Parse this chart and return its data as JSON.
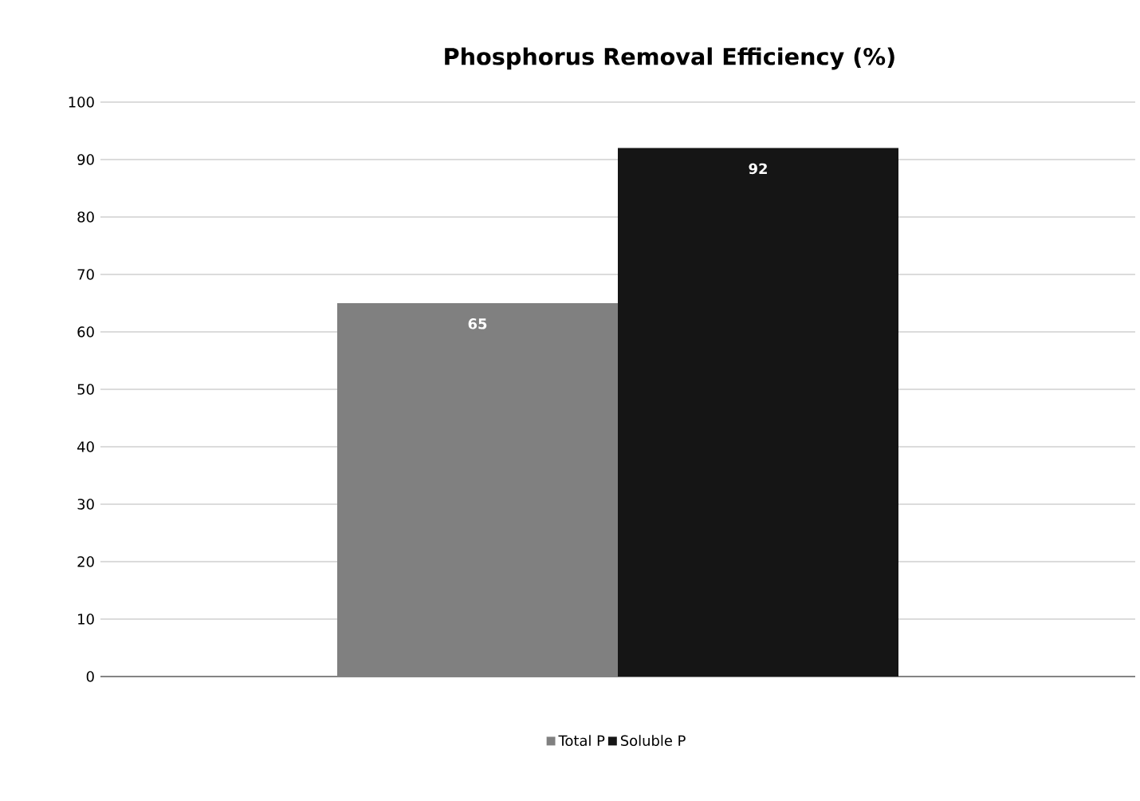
{
  "chart_data": {
    "type": "bar",
    "title": "Phosphorus Removal Efficiency (%)",
    "categories": [
      null
    ],
    "series": [
      {
        "name": "Total P",
        "color": "#808080",
        "values": [
          65
        ]
      },
      {
        "name": "Soluble P",
        "color": "#151515",
        "values": [
          92
        ]
      }
    ],
    "ylim": [
      0,
      100
    ],
    "yticks": [
      0,
      10,
      20,
      30,
      40,
      50,
      60,
      70,
      80,
      90,
      100
    ],
    "grid": "y",
    "legend": "bottom",
    "data_labels": true
  }
}
